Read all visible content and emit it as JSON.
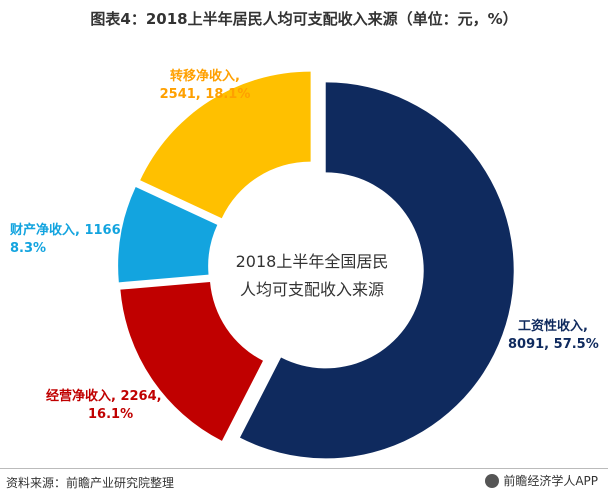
{
  "title": "图表4：2018上半年居民人均可支配收入来源（单位：元，%）",
  "center_label": [
    "2018上半年全国居民",
    "人均可支配收入来源"
  ],
  "footer": {
    "source": "资料来源：前瞻产业研究院整理",
    "brand": "前瞻经济学人APP"
  },
  "labels": {
    "zhuanyi": [
      "转移净收入,",
      "2541, 18.1%"
    ],
    "caichan": [
      "财产净收入, 1166,",
      "8.3%"
    ],
    "jingying": [
      "经营净收入, 2264,",
      "16.1%"
    ],
    "gongzi": [
      "工资性收入,",
      "8091, 57.5%"
    ]
  },
  "chart_data": {
    "type": "pie",
    "title": "图表4：2018上半年居民人均可支配收入来源（单位：元，%）",
    "center_text": "2018上半年全国居民人均可支配收入来源",
    "unit": "元，%",
    "slices": [
      {
        "name": "工资性收入",
        "value": 8091,
        "percent": 57.5,
        "color": "#0f2a5e"
      },
      {
        "name": "经营净收入",
        "value": 2264,
        "percent": 16.1,
        "color": "#c00000"
      },
      {
        "name": "财产净收入",
        "value": 1166,
        "percent": 8.3,
        "color": "#13a4df"
      },
      {
        "name": "转移净收入",
        "value": 2541,
        "percent": 18.1,
        "color": "#ffc000"
      }
    ],
    "label_colors": {
      "工资性收入": "#0f2a5e",
      "经营净收入": "#c00000",
      "财产净收入": "#13a4df",
      "转移净收入": "#ffa000"
    }
  }
}
